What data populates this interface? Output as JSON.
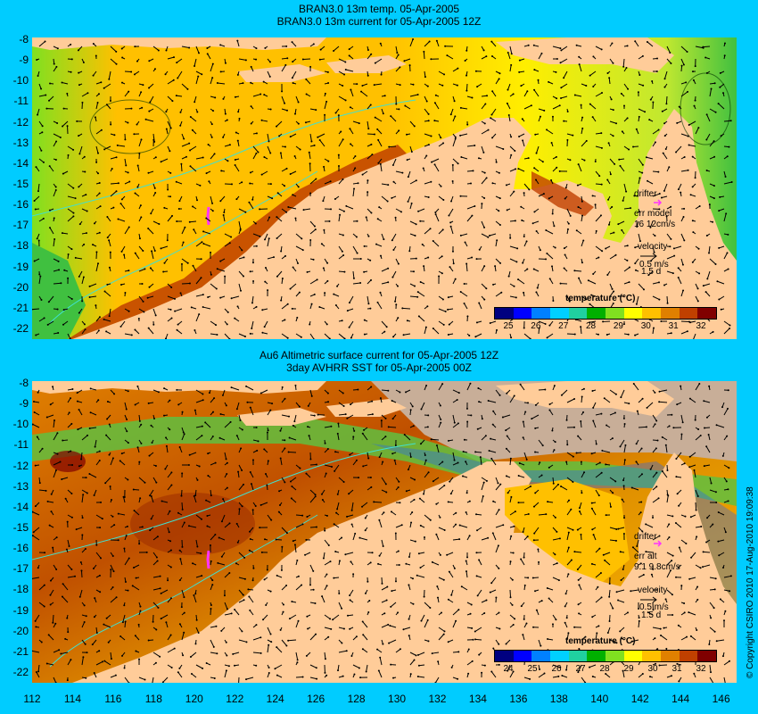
{
  "panel1": {
    "title_line1": "BRAN3.0 13m temp. 05-Apr-2005",
    "title_line2": "BRAN3.0 13m current for 05-Apr-2005 12Z",
    "drifter_label": "drifter",
    "err_label": "err model",
    "err_value": "16 12cm/s",
    "velocity_label": "velocity",
    "velocity_value": "0.5 m/s",
    "velocity_time": "1.5 d",
    "colorbar_title": "temperature (°C)",
    "colorbar_ticks": [
      "25",
      "26",
      "27",
      "28",
      "29",
      "30",
      "31",
      "32"
    ]
  },
  "panel2": {
    "title_line1": "Au6 Altimetric surface current for 05-Apr-2005 12Z",
    "title_line2": "3day AVHRR SST for 05-Apr-2005 00Z",
    "drifter_label": "drifter",
    "err_label": "err alt",
    "err_value": "9.1 9.8cm/s",
    "velocity_label": "velocity",
    "velocity_value": "0.5 m/s",
    "velocity_time": "1.5 d",
    "colorbar_title": "temperature (°C)",
    "colorbar_ticks": [
      "24",
      "25",
      "26",
      "27",
      "28",
      "29",
      "30",
      "31",
      "32"
    ]
  },
  "yticks": [
    "-8",
    "-9",
    "-10",
    "-11",
    "-12",
    "-13",
    "-14",
    "-15",
    "-16",
    "-17",
    "-18",
    "-19",
    "-20",
    "-21",
    "-22"
  ],
  "xticks": [
    "112",
    "114",
    "116",
    "118",
    "120",
    "122",
    "124",
    "126",
    "128",
    "130",
    "132",
    "134",
    "136",
    "138",
    "140",
    "142",
    "144",
    "146"
  ],
  "copyright": "© Copyright CSIRO 2010   17-Aug-2010 19:09:38",
  "colors": {
    "background": "#00ccff",
    "land": "#ffcc99",
    "nodata": "#c8ae98",
    "drifter": "#ff33ff",
    "palette": [
      "#000080",
      "#0000ff",
      "#0080ff",
      "#00d0ff",
      "#20d0a0",
      "#00b000",
      "#80e020",
      "#ffff00",
      "#ffc000",
      "#e08000",
      "#c04000",
      "#800000"
    ]
  }
}
